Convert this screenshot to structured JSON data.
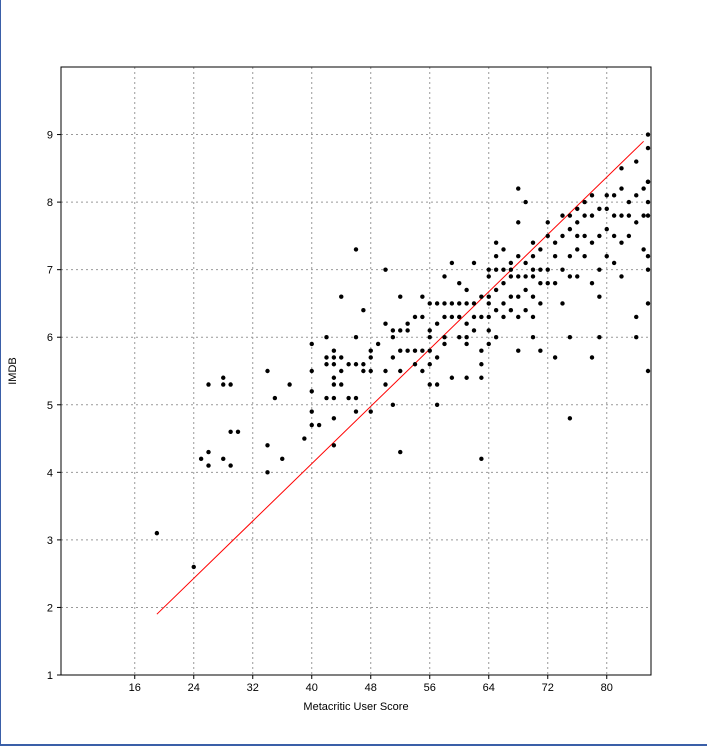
{
  "chart_data": {
    "type": "scatter",
    "xlabel": "Metacritic User Score",
    "ylabel": "IMDB",
    "xlim": [
      6,
      86
    ],
    "ylim": [
      1,
      10
    ],
    "xticks": [
      16,
      24,
      32,
      40,
      48,
      56,
      64,
      72,
      80
    ],
    "yticks": [
      1,
      2,
      3,
      4,
      5,
      6,
      7,
      8,
      9
    ],
    "grid": true,
    "colors": {
      "points": "#000000",
      "fit_line": "#ff0000",
      "grid": "#999999"
    },
    "fit_line": {
      "x": [
        19,
        85
      ],
      "y": [
        1.9,
        8.9
      ]
    },
    "series": [
      {
        "points": [
          [
            19,
            3.1
          ],
          [
            24,
            2.6
          ],
          [
            25,
            4.2
          ],
          [
            26,
            4.1
          ],
          [
            26,
            4.3
          ],
          [
            26,
            5.3
          ],
          [
            28,
            4.2
          ],
          [
            28,
            5.3
          ],
          [
            28,
            5.4
          ],
          [
            29,
            4.1
          ],
          [
            29,
            4.6
          ],
          [
            29,
            5.3
          ],
          [
            30,
            4.6
          ],
          [
            34,
            4.0
          ],
          [
            34,
            4.4
          ],
          [
            34,
            5.5
          ],
          [
            35,
            5.1
          ],
          [
            36,
            4.2
          ],
          [
            37,
            5.3
          ],
          [
            39,
            4.5
          ],
          [
            40,
            4.7
          ],
          [
            40,
            4.9
          ],
          [
            40,
            5.2
          ],
          [
            40,
            5.5
          ],
          [
            40,
            5.9
          ],
          [
            41,
            4.7
          ],
          [
            42,
            5.1
          ],
          [
            42,
            5.6
          ],
          [
            42,
            5.7
          ],
          [
            42,
            6.0
          ],
          [
            43,
            4.4
          ],
          [
            43,
            4.8
          ],
          [
            43,
            5.1
          ],
          [
            43,
            5.3
          ],
          [
            43,
            5.4
          ],
          [
            43,
            5.6
          ],
          [
            43,
            5.7
          ],
          [
            43,
            5.8
          ],
          [
            44,
            5.3
          ],
          [
            44,
            5.5
          ],
          [
            44,
            5.7
          ],
          [
            44,
            6.6
          ],
          [
            45,
            5.1
          ],
          [
            45,
            5.6
          ],
          [
            46,
            4.9
          ],
          [
            46,
            5.1
          ],
          [
            46,
            5.6
          ],
          [
            46,
            6.0
          ],
          [
            46,
            7.3
          ],
          [
            47,
            5.5
          ],
          [
            47,
            5.6
          ],
          [
            47,
            6.4
          ],
          [
            48,
            4.9
          ],
          [
            48,
            5.5
          ],
          [
            48,
            5.7
          ],
          [
            48,
            5.8
          ],
          [
            49,
            5.9
          ],
          [
            50,
            5.3
          ],
          [
            50,
            5.5
          ],
          [
            50,
            6.2
          ],
          [
            50,
            7.0
          ],
          [
            51,
            5.0
          ],
          [
            51,
            5.7
          ],
          [
            51,
            6.0
          ],
          [
            51,
            6.1
          ],
          [
            52,
            4.3
          ],
          [
            52,
            5.5
          ],
          [
            52,
            5.8
          ],
          [
            52,
            6.1
          ],
          [
            52,
            6.6
          ],
          [
            53,
            5.8
          ],
          [
            53,
            6.1
          ],
          [
            53,
            6.2
          ],
          [
            54,
            5.6
          ],
          [
            54,
            5.8
          ],
          [
            54,
            6.3
          ],
          [
            55,
            5.5
          ],
          [
            55,
            5.8
          ],
          [
            55,
            6.3
          ],
          [
            55,
            6.6
          ],
          [
            56,
            5.3
          ],
          [
            56,
            5.6
          ],
          [
            56,
            5.8
          ],
          [
            56,
            6.0
          ],
          [
            56,
            6.1
          ],
          [
            56,
            6.5
          ],
          [
            57,
            5.0
          ],
          [
            57,
            5.3
          ],
          [
            57,
            5.7
          ],
          [
            57,
            6.2
          ],
          [
            57,
            6.5
          ],
          [
            58,
            5.9
          ],
          [
            58,
            6.0
          ],
          [
            58,
            6.3
          ],
          [
            58,
            6.5
          ],
          [
            58,
            6.9
          ],
          [
            59,
            5.4
          ],
          [
            59,
            6.3
          ],
          [
            59,
            6.5
          ],
          [
            59,
            7.1
          ],
          [
            60,
            6.0
          ],
          [
            60,
            6.3
          ],
          [
            60,
            6.5
          ],
          [
            60,
            6.8
          ],
          [
            61,
            5.4
          ],
          [
            61,
            5.9
          ],
          [
            61,
            6.0
          ],
          [
            61,
            6.2
          ],
          [
            61,
            6.5
          ],
          [
            61,
            6.7
          ],
          [
            62,
            6.1
          ],
          [
            62,
            6.3
          ],
          [
            62,
            6.5
          ],
          [
            62,
            7.1
          ],
          [
            63,
            4.2
          ],
          [
            63,
            5.4
          ],
          [
            63,
            5.6
          ],
          [
            63,
            5.8
          ],
          [
            63,
            6.3
          ],
          [
            63,
            6.6
          ],
          [
            64,
            5.9
          ],
          [
            64,
            6.1
          ],
          [
            64,
            6.3
          ],
          [
            64,
            6.5
          ],
          [
            64,
            6.6
          ],
          [
            64,
            6.9
          ],
          [
            64,
            7.0
          ],
          [
            65,
            6.0
          ],
          [
            65,
            6.4
          ],
          [
            65,
            6.7
          ],
          [
            65,
            7.0
          ],
          [
            65,
            7.2
          ],
          [
            65,
            7.4
          ],
          [
            66,
            6.3
          ],
          [
            66,
            6.5
          ],
          [
            66,
            6.8
          ],
          [
            66,
            7.0
          ],
          [
            66,
            7.3
          ],
          [
            67,
            6.4
          ],
          [
            67,
            6.6
          ],
          [
            67,
            6.9
          ],
          [
            67,
            7.0
          ],
          [
            67,
            7.1
          ],
          [
            68,
            5.8
          ],
          [
            68,
            6.3
          ],
          [
            68,
            6.6
          ],
          [
            68,
            6.9
          ],
          [
            68,
            7.2
          ],
          [
            68,
            7.7
          ],
          [
            68,
            8.2
          ],
          [
            69,
            6.4
          ],
          [
            69,
            6.7
          ],
          [
            69,
            6.9
          ],
          [
            69,
            7.1
          ],
          [
            69,
            8.0
          ],
          [
            70,
            6.0
          ],
          [
            70,
            6.3
          ],
          [
            70,
            6.6
          ],
          [
            70,
            6.9
          ],
          [
            70,
            7.0
          ],
          [
            70,
            7.2
          ],
          [
            70,
            7.4
          ],
          [
            71,
            5.8
          ],
          [
            71,
            6.5
          ],
          [
            71,
            6.8
          ],
          [
            71,
            7.0
          ],
          [
            71,
            7.3
          ],
          [
            72,
            6.8
          ],
          [
            72,
            7.0
          ],
          [
            72,
            7.5
          ],
          [
            72,
            7.7
          ],
          [
            73,
            5.7
          ],
          [
            73,
            6.8
          ],
          [
            73,
            7.2
          ],
          [
            73,
            7.4
          ],
          [
            74,
            6.5
          ],
          [
            74,
            7.0
          ],
          [
            74,
            7.5
          ],
          [
            74,
            7.8
          ],
          [
            75,
            4.8
          ],
          [
            75,
            6.0
          ],
          [
            75,
            6.9
          ],
          [
            75,
            7.2
          ],
          [
            75,
            7.6
          ],
          [
            75,
            7.8
          ],
          [
            76,
            6.9
          ],
          [
            76,
            7.3
          ],
          [
            76,
            7.5
          ],
          [
            76,
            7.7
          ],
          [
            76,
            7.9
          ],
          [
            77,
            7.2
          ],
          [
            77,
            7.5
          ],
          [
            77,
            7.8
          ],
          [
            77,
            8.0
          ],
          [
            78,
            5.7
          ],
          [
            78,
            6.8
          ],
          [
            78,
            7.4
          ],
          [
            78,
            7.8
          ],
          [
            78,
            8.1
          ],
          [
            79,
            6.0
          ],
          [
            79,
            6.6
          ],
          [
            79,
            7.0
          ],
          [
            79,
            7.5
          ],
          [
            79,
            7.9
          ],
          [
            80,
            7.2
          ],
          [
            80,
            7.6
          ],
          [
            80,
            7.9
          ],
          [
            80,
            8.1
          ],
          [
            81,
            7.1
          ],
          [
            81,
            7.5
          ],
          [
            81,
            7.8
          ],
          [
            81,
            8.1
          ],
          [
            82,
            6.9
          ],
          [
            82,
            7.4
          ],
          [
            82,
            7.8
          ],
          [
            82,
            8.2
          ],
          [
            82,
            8.5
          ],
          [
            83,
            7.5
          ],
          [
            83,
            7.8
          ],
          [
            83,
            8.0
          ],
          [
            84,
            6.3
          ],
          [
            84,
            6.0
          ],
          [
            84,
            7.7
          ],
          [
            84,
            8.1
          ],
          [
            84,
            8.6
          ],
          [
            85,
            7.3
          ],
          [
            85,
            7.8
          ],
          [
            85,
            8.2
          ],
          [
            86,
            5.5
          ],
          [
            86,
            6.5
          ],
          [
            86,
            7.0
          ],
          [
            86,
            8.0
          ],
          [
            87,
            7.2
          ],
          [
            87,
            8.3
          ],
          [
            87,
            8.8
          ],
          [
            88,
            7.8
          ],
          [
            88,
            8.3
          ],
          [
            88,
            9.0
          ]
        ]
      }
    ]
  }
}
